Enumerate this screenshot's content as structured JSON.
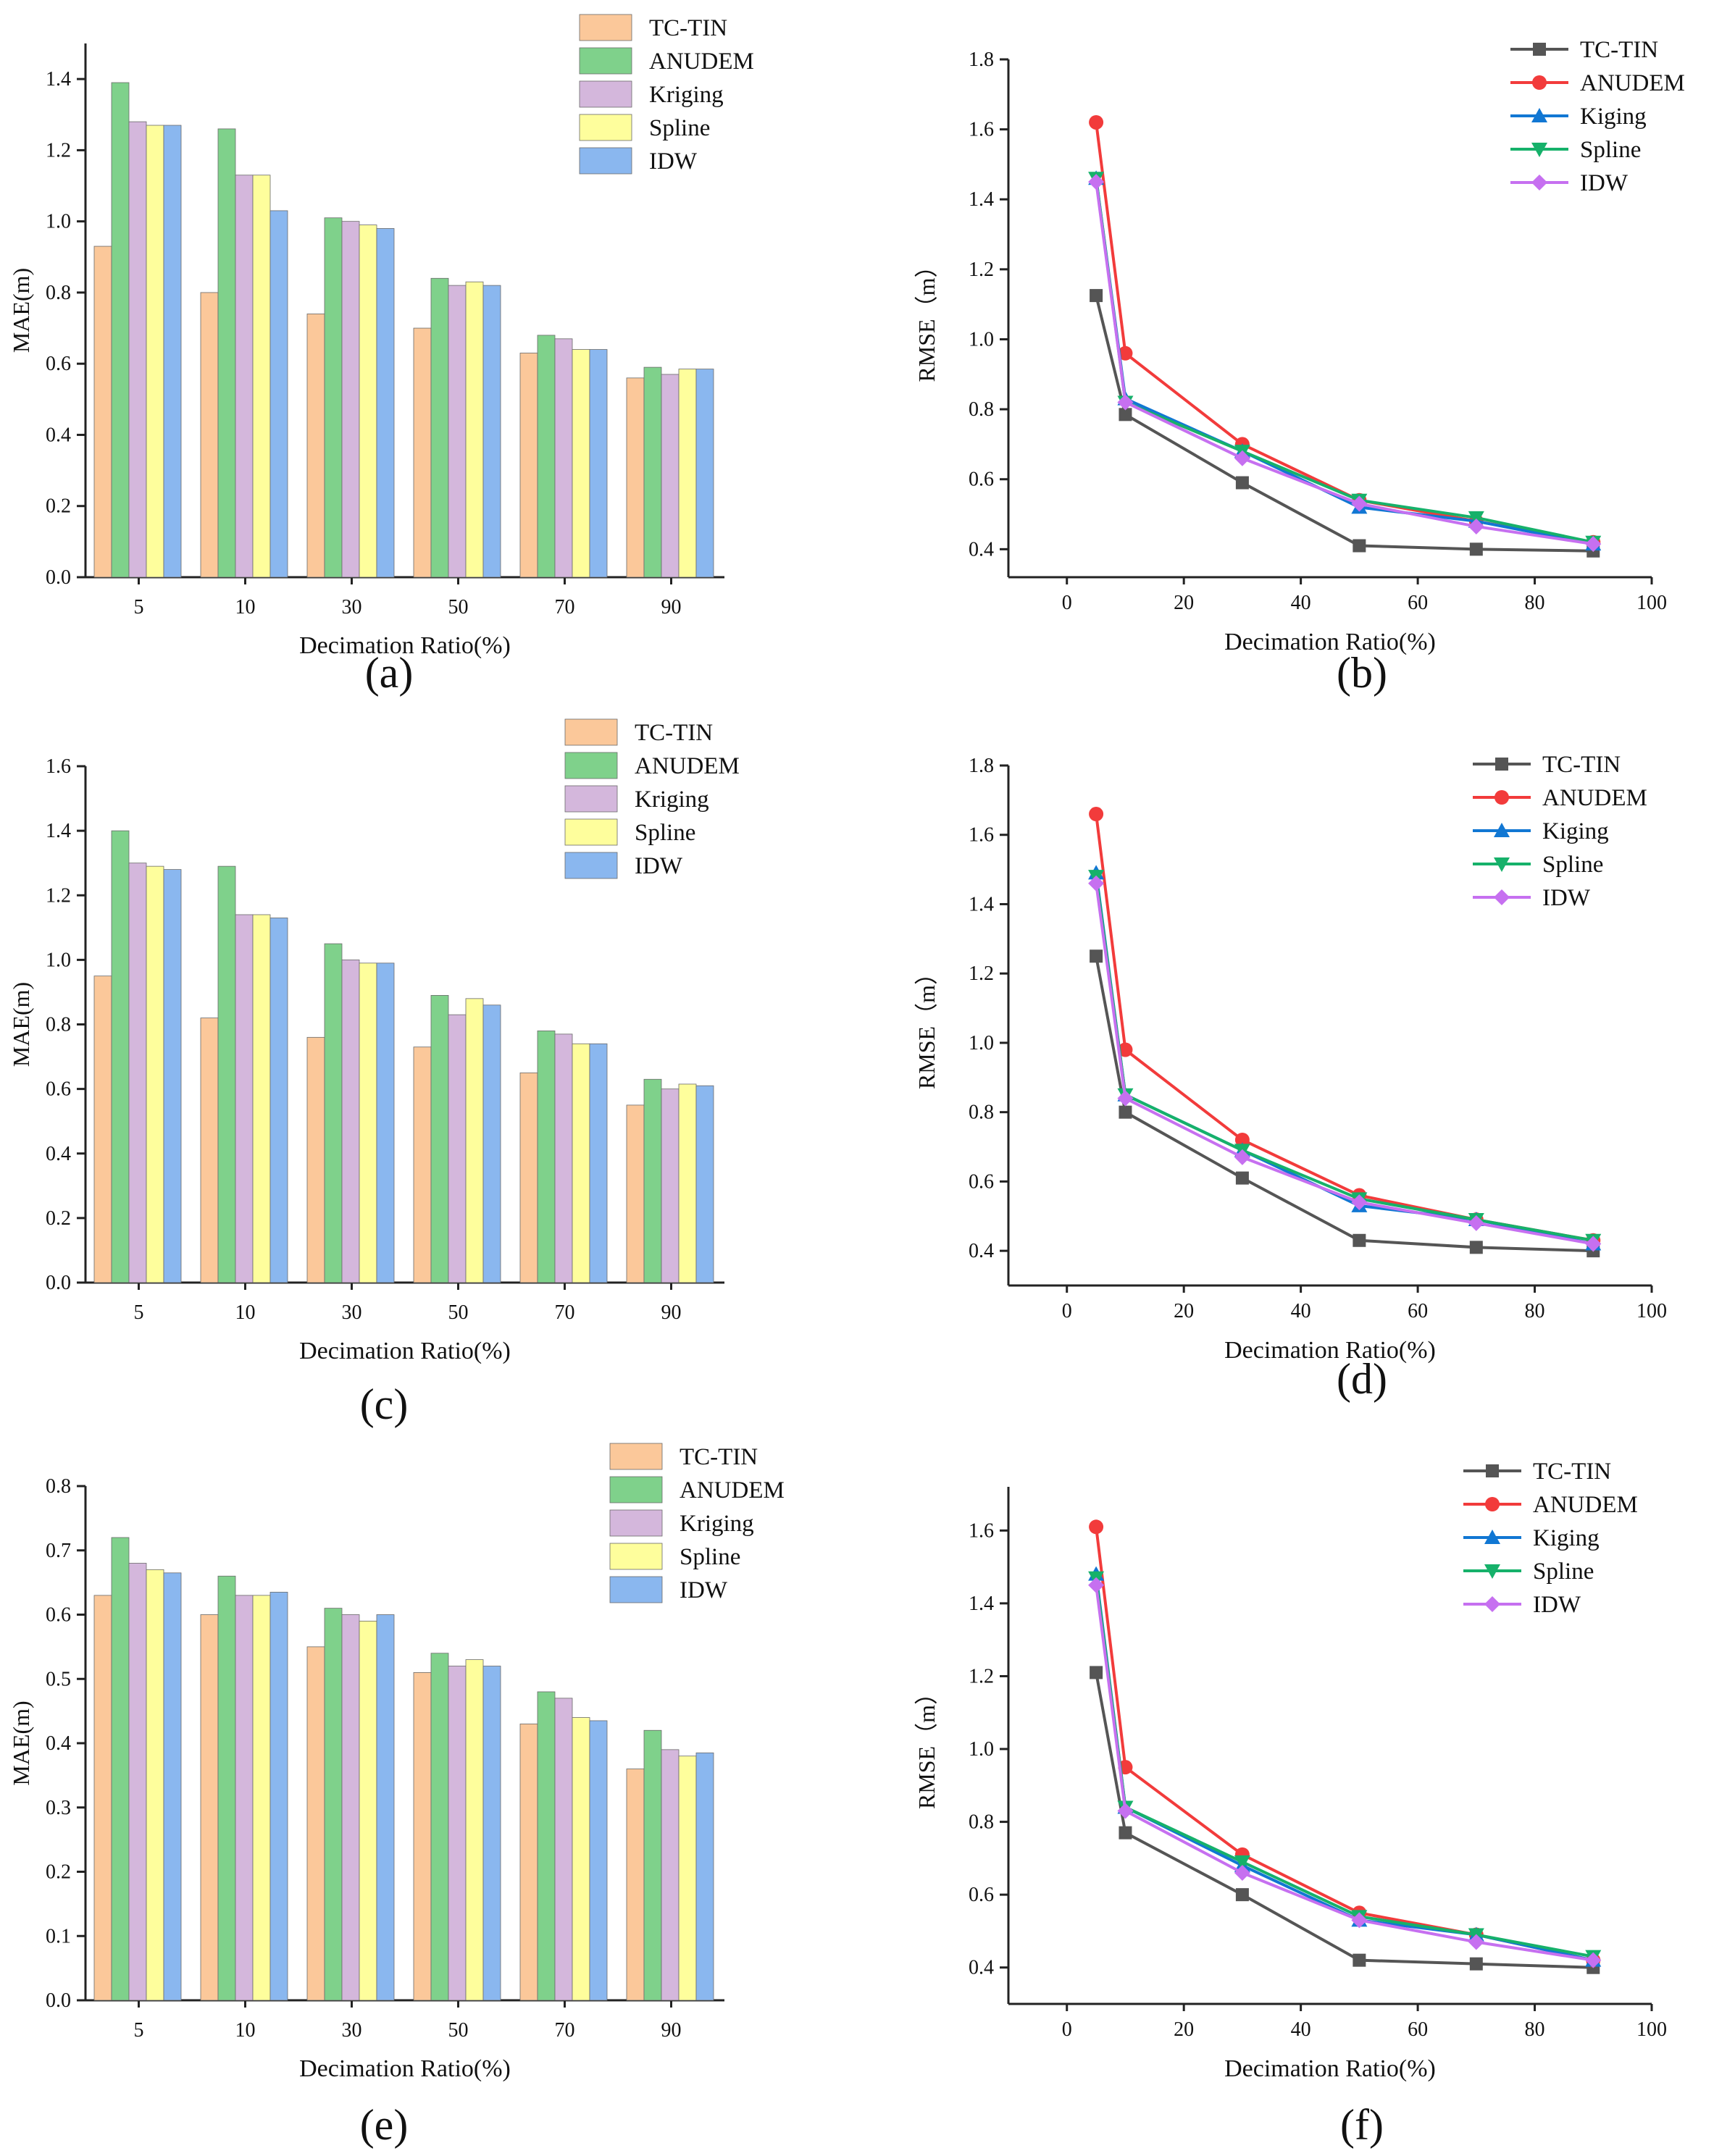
{
  "colors": {
    "TC-TIN": "#fbc89a",
    "ANUDEM": "#7fd18b",
    "Kriging": "#d4b7dc",
    "Spline": "#fefe9c",
    "IDW": "#8ab7ef",
    "lineTC": "#555555",
    "lineANUDEM": "#f23b3b",
    "lineKiging": "#1177d3",
    "lineSpline": "#16b16a",
    "lineIDW": "#c670f0",
    "axis": "#222222",
    "text": "#111111"
  },
  "chart_data": [
    {
      "id": "a",
      "type": "bar",
      "caption": "(a)",
      "xlabel": "Decimation Ratio(%)",
      "ylabel": "MAE(m)",
      "categories": [
        "5",
        "10",
        "30",
        "50",
        "70",
        "90"
      ],
      "ylim": [
        0,
        1.5
      ],
      "yticks": [
        "0.0",
        "0.2",
        "0.4",
        "0.6",
        "0.8",
        "1.0",
        "1.2",
        "1.4"
      ],
      "series": [
        {
          "name": "TC-TIN",
          "values": [
            0.93,
            0.8,
            0.74,
            0.7,
            0.63,
            0.56
          ]
        },
        {
          "name": "ANUDEM",
          "values": [
            1.39,
            1.26,
            1.01,
            0.84,
            0.68,
            0.59
          ]
        },
        {
          "name": "Kriging",
          "values": [
            1.28,
            1.13,
            1.0,
            0.82,
            0.67,
            0.57
          ]
        },
        {
          "name": "Spline",
          "values": [
            1.27,
            1.13,
            0.99,
            0.83,
            0.64,
            0.585
          ]
        },
        {
          "name": "IDW",
          "values": [
            1.27,
            1.03,
            0.98,
            0.82,
            0.64,
            0.585
          ]
        }
      ]
    },
    {
      "id": "b",
      "type": "line",
      "caption": "(b)",
      "xlabel": "Decimation Ratio(%)",
      "ylabel": "RMSE（m）",
      "xlim": [
        -10,
        100
      ],
      "ylim": [
        0.32,
        1.8
      ],
      "xticks": [
        "0",
        "20",
        "40",
        "60",
        "80",
        "100"
      ],
      "yticks": [
        "0.4",
        "0.6",
        "0.8",
        "1.0",
        "1.2",
        "1.4",
        "1.6",
        "1.8"
      ],
      "x": [
        5,
        10,
        30,
        50,
        70,
        90
      ],
      "series": [
        {
          "name": "TC-TIN",
          "marker": "square",
          "values": [
            1.125,
            0.785,
            0.59,
            0.41,
            0.4,
            0.395
          ]
        },
        {
          "name": "ANUDEM",
          "marker": "circle",
          "values": [
            1.62,
            0.96,
            0.7,
            0.54,
            0.48,
            0.42
          ]
        },
        {
          "name": "Kiging",
          "marker": "triangle-up",
          "values": [
            1.46,
            0.83,
            0.68,
            0.52,
            0.48,
            0.415
          ]
        },
        {
          "name": "Spline",
          "marker": "triangle-down",
          "values": [
            1.46,
            0.82,
            0.68,
            0.54,
            0.49,
            0.42
          ]
        },
        {
          "name": "IDW",
          "marker": "diamond",
          "values": [
            1.45,
            0.82,
            0.66,
            0.53,
            0.465,
            0.415
          ]
        }
      ]
    },
    {
      "id": "c",
      "type": "bar",
      "caption": "(c)",
      "xlabel": "Decimation Ratio(%)",
      "ylabel": "MAE(m)",
      "categories": [
        "5",
        "10",
        "30",
        "50",
        "70",
        "90"
      ],
      "ylim": [
        0,
        1.6
      ],
      "yticks": [
        "0.0",
        "0.2",
        "0.4",
        "0.6",
        "0.8",
        "1.0",
        "1.2",
        "1.4",
        "1.6"
      ],
      "series": [
        {
          "name": "TC-TIN",
          "values": [
            0.95,
            0.82,
            0.76,
            0.73,
            0.65,
            0.55
          ]
        },
        {
          "name": "ANUDEM",
          "values": [
            1.4,
            1.29,
            1.05,
            0.89,
            0.78,
            0.63
          ]
        },
        {
          "name": "Kriging",
          "values": [
            1.3,
            1.14,
            1.0,
            0.83,
            0.77,
            0.6
          ]
        },
        {
          "name": "Spline",
          "values": [
            1.29,
            1.14,
            0.99,
            0.88,
            0.74,
            0.615
          ]
        },
        {
          "name": "IDW",
          "values": [
            1.28,
            1.13,
            0.99,
            0.86,
            0.74,
            0.61
          ]
        }
      ]
    },
    {
      "id": "d",
      "type": "line",
      "caption": "(d)",
      "xlabel": "Decimation Ratio(%)",
      "ylabel": "RMSE（m）",
      "xlim": [
        -10,
        100
      ],
      "ylim": [
        0.3,
        1.8
      ],
      "xticks": [
        "0",
        "20",
        "40",
        "60",
        "80",
        "100"
      ],
      "yticks": [
        "0.4",
        "0.6",
        "0.8",
        "1.0",
        "1.2",
        "1.4",
        "1.6",
        "1.8"
      ],
      "x": [
        5,
        10,
        30,
        50,
        70,
        90
      ],
      "series": [
        {
          "name": "TC-TIN",
          "marker": "square",
          "values": [
            1.25,
            0.8,
            0.61,
            0.43,
            0.41,
            0.4
          ]
        },
        {
          "name": "ANUDEM",
          "marker": "circle",
          "values": [
            1.66,
            0.98,
            0.72,
            0.56,
            0.49,
            0.43
          ]
        },
        {
          "name": "Kiging",
          "marker": "triangle-up",
          "values": [
            1.49,
            0.85,
            0.69,
            0.53,
            0.49,
            0.42
          ]
        },
        {
          "name": "Spline",
          "marker": "triangle-down",
          "values": [
            1.48,
            0.85,
            0.69,
            0.55,
            0.49,
            0.43
          ]
        },
        {
          "name": "IDW",
          "marker": "diamond",
          "values": [
            1.46,
            0.84,
            0.67,
            0.54,
            0.48,
            0.42
          ]
        }
      ]
    },
    {
      "id": "e",
      "type": "bar",
      "caption": "(e)",
      "xlabel": "Decimation Ratio(%)",
      "ylabel": "MAE(m)",
      "categories": [
        "5",
        "10",
        "30",
        "50",
        "70",
        "90"
      ],
      "ylim": [
        0,
        0.8
      ],
      "yticks": [
        "0.0",
        "0.1",
        "0.2",
        "0.3",
        "0.4",
        "0.5",
        "0.6",
        "0.7",
        "0.8"
      ],
      "series": [
        {
          "name": "TC-TIN",
          "values": [
            0.63,
            0.6,
            0.55,
            0.51,
            0.43,
            0.36
          ]
        },
        {
          "name": "ANUDEM",
          "values": [
            0.72,
            0.66,
            0.61,
            0.54,
            0.48,
            0.42
          ]
        },
        {
          "name": "Kriging",
          "values": [
            0.68,
            0.63,
            0.6,
            0.52,
            0.47,
            0.39
          ]
        },
        {
          "name": "Spline",
          "values": [
            0.67,
            0.63,
            0.59,
            0.53,
            0.44,
            0.38
          ]
        },
        {
          "name": "IDW",
          "values": [
            0.665,
            0.635,
            0.6,
            0.52,
            0.435,
            0.385
          ]
        }
      ]
    },
    {
      "id": "f",
      "type": "line",
      "caption": "(f)",
      "xlabel": "Decimation Ratio(%)",
      "ylabel": "RMSE（m）",
      "xlim": [
        -10,
        100
      ],
      "ylim": [
        0.3,
        1.72
      ],
      "xticks": [
        "0",
        "20",
        "40",
        "60",
        "80",
        "100"
      ],
      "yticks": [
        "0.4",
        "0.6",
        "0.8",
        "1.0",
        "1.2",
        "1.4",
        "1.6"
      ],
      "x": [
        5,
        10,
        30,
        50,
        70,
        90
      ],
      "series": [
        {
          "name": "TC-TIN",
          "marker": "square",
          "values": [
            1.21,
            0.77,
            0.6,
            0.42,
            0.41,
            0.4
          ]
        },
        {
          "name": "ANUDEM",
          "marker": "circle",
          "values": [
            1.61,
            0.95,
            0.71,
            0.55,
            0.49,
            0.42
          ]
        },
        {
          "name": "Kiging",
          "marker": "triangle-up",
          "values": [
            1.48,
            0.84,
            0.68,
            0.53,
            0.49,
            0.42
          ]
        },
        {
          "name": "Spline",
          "marker": "triangle-down",
          "values": [
            1.47,
            0.84,
            0.69,
            0.54,
            0.49,
            0.43
          ]
        },
        {
          "name": "IDW",
          "marker": "diamond",
          "values": [
            1.45,
            0.83,
            0.66,
            0.53,
            0.47,
            0.42
          ]
        }
      ]
    }
  ]
}
